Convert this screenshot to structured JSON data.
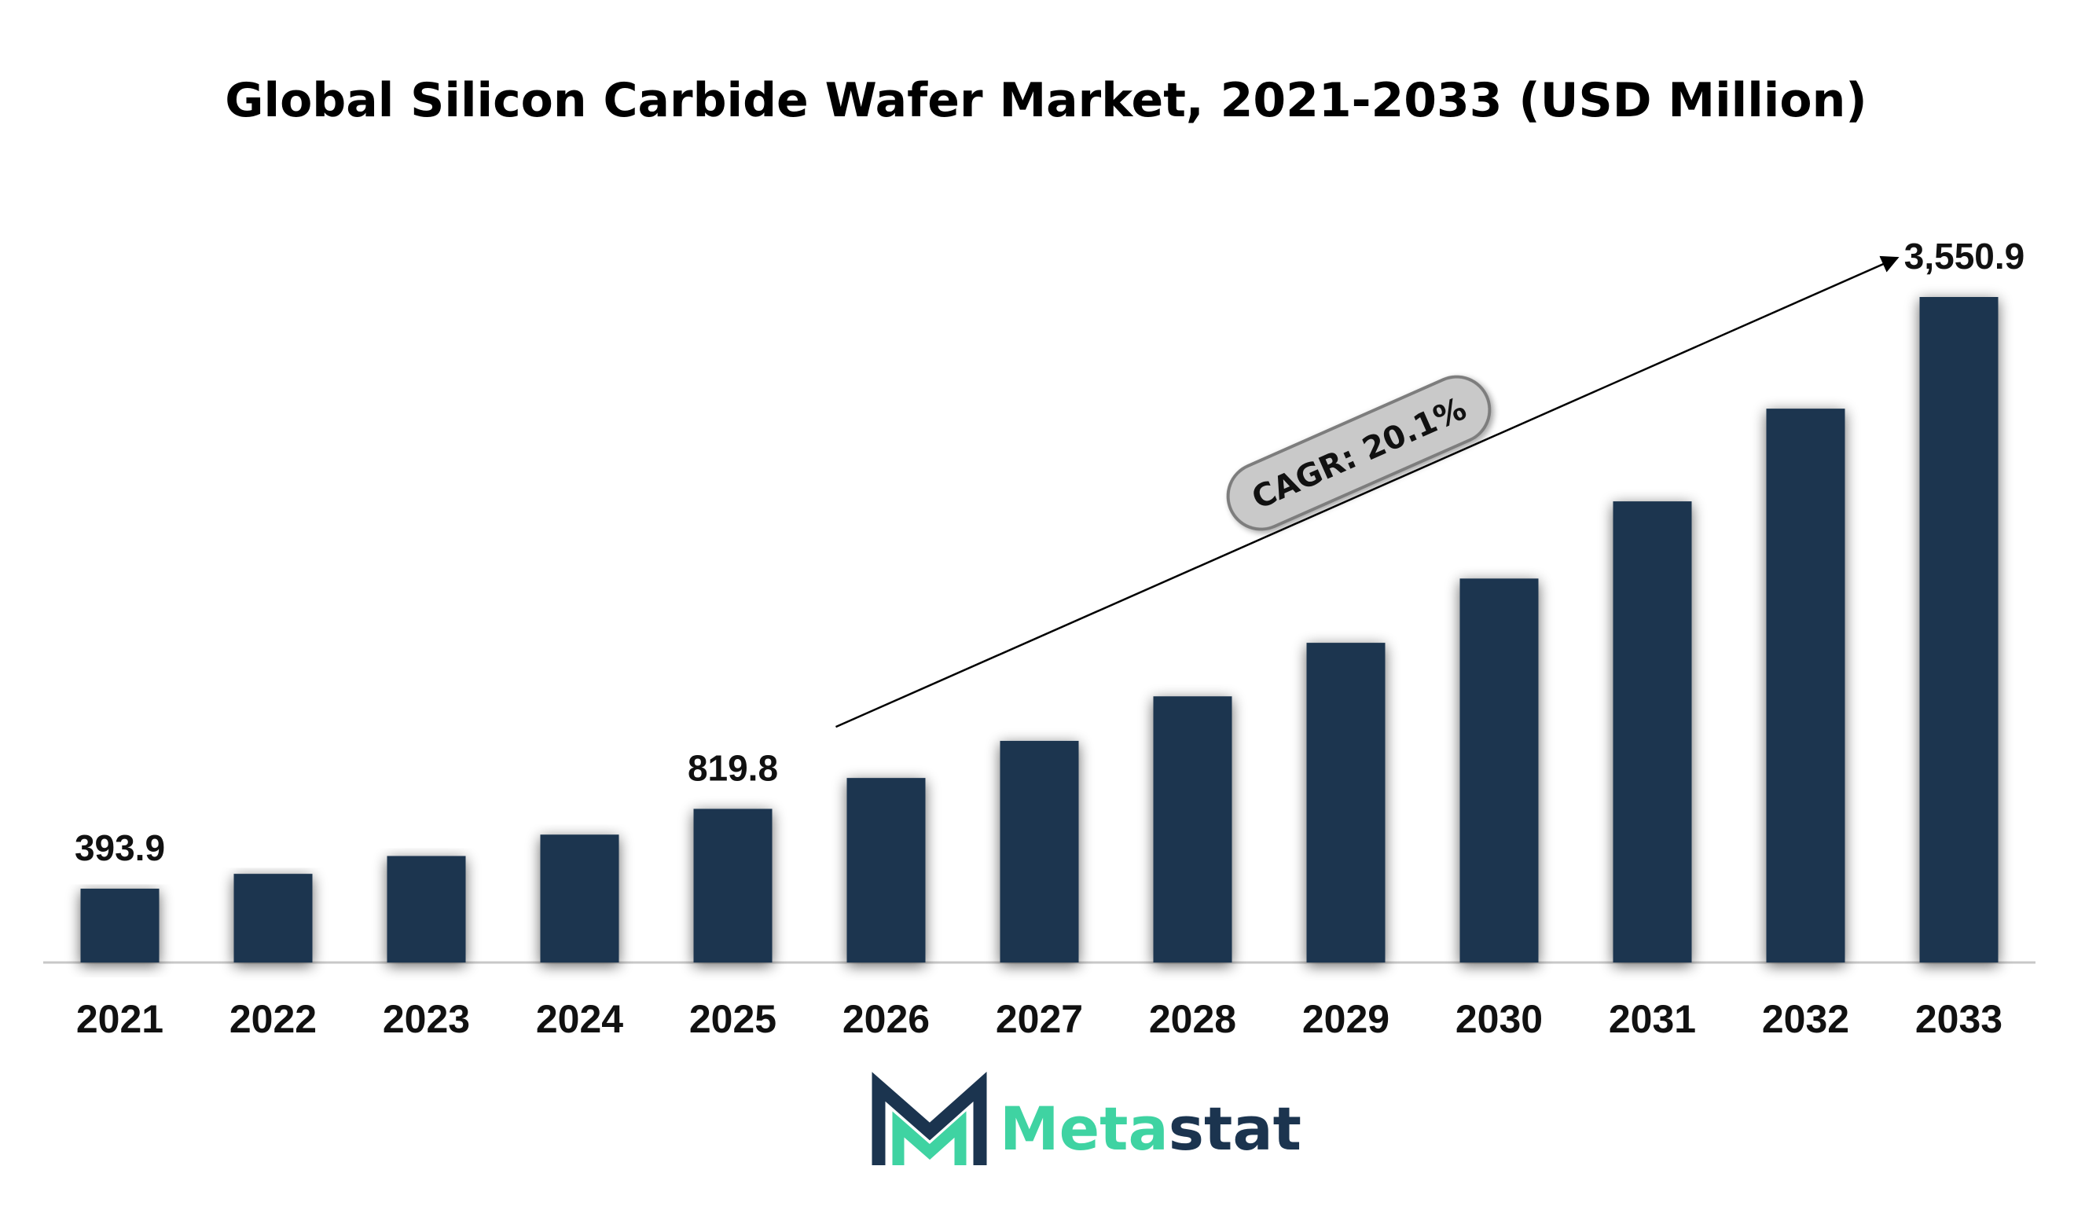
{
  "chart_data": {
    "type": "bar",
    "title": "Global Silicon Carbide Wafer Market, 2021-2033 (USD Million)",
    "xlabel": "",
    "ylabel": "",
    "categories": [
      "2021",
      "2022",
      "2023",
      "2024",
      "2025",
      "2026",
      "2027",
      "2028",
      "2029",
      "2030",
      "2031",
      "2032",
      "2033"
    ],
    "values": [
      393.9,
      473.1,
      568.2,
      682.4,
      819.8,
      984.6,
      1182.5,
      1420.2,
      1705.8,
      2048.7,
      2460.5,
      2955.1,
      3550.9
    ],
    "data_labels": [
      {
        "index": 0,
        "text": "393.9"
      },
      {
        "index": 4,
        "text": "819.8"
      },
      {
        "index": 12,
        "text": "3,550.9"
      }
    ],
    "ylim": [
      0,
      3550.9
    ],
    "grid": false,
    "legend": "none",
    "annotation": {
      "text": "CAGR: 20.1%",
      "arrow_from_index": 5,
      "arrow_to_index": 12
    },
    "colors": {
      "bar": "#1b344f",
      "axis": "#c8c8c8",
      "badge_fill": "#c9c9c9",
      "badge_stroke": "#7d7d7d"
    }
  },
  "logo": {
    "brand_part1": "Meta",
    "brand_part2": "stat",
    "color_dark": "#1b344f",
    "color_accent": "#3fd3a2"
  }
}
